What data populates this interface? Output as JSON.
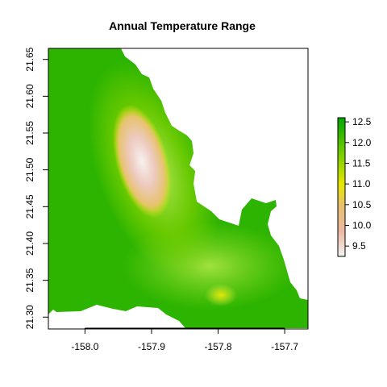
{
  "title": "Annual Temperature Range",
  "x_axis": {
    "ticks": [
      -158.0,
      -157.9,
      -157.8,
      -157.7
    ],
    "tick_labels": [
      "-158.0",
      "-157.9",
      "-157.8",
      "-157.7"
    ],
    "range": [
      -158.055,
      -157.665
    ]
  },
  "y_axis": {
    "ticks": [
      21.3,
      21.35,
      21.4,
      21.45,
      21.5,
      21.55,
      21.6,
      21.65
    ],
    "tick_labels": [
      "21.30",
      "21.35",
      "21.40",
      "21.45",
      "21.50",
      "21.55",
      "21.60",
      "21.65"
    ],
    "range": [
      21.285,
      21.665
    ]
  },
  "legend": {
    "ticks": [
      9.5,
      10.0,
      10.5,
      11.0,
      11.5,
      12.0,
      12.5
    ],
    "tick_labels": [
      "9.5",
      "10.0",
      "10.5",
      "11.0",
      "11.5",
      "12.0",
      "12.5"
    ],
    "range": [
      9.25,
      12.6
    ]
  },
  "colors": {
    "high": "#00a600",
    "mid_high": "#7fd100",
    "mid": "#e6e600",
    "mid_low": "#eab64e",
    "low_mid": "#ecb176",
    "low": "#f2f2f2"
  }
}
